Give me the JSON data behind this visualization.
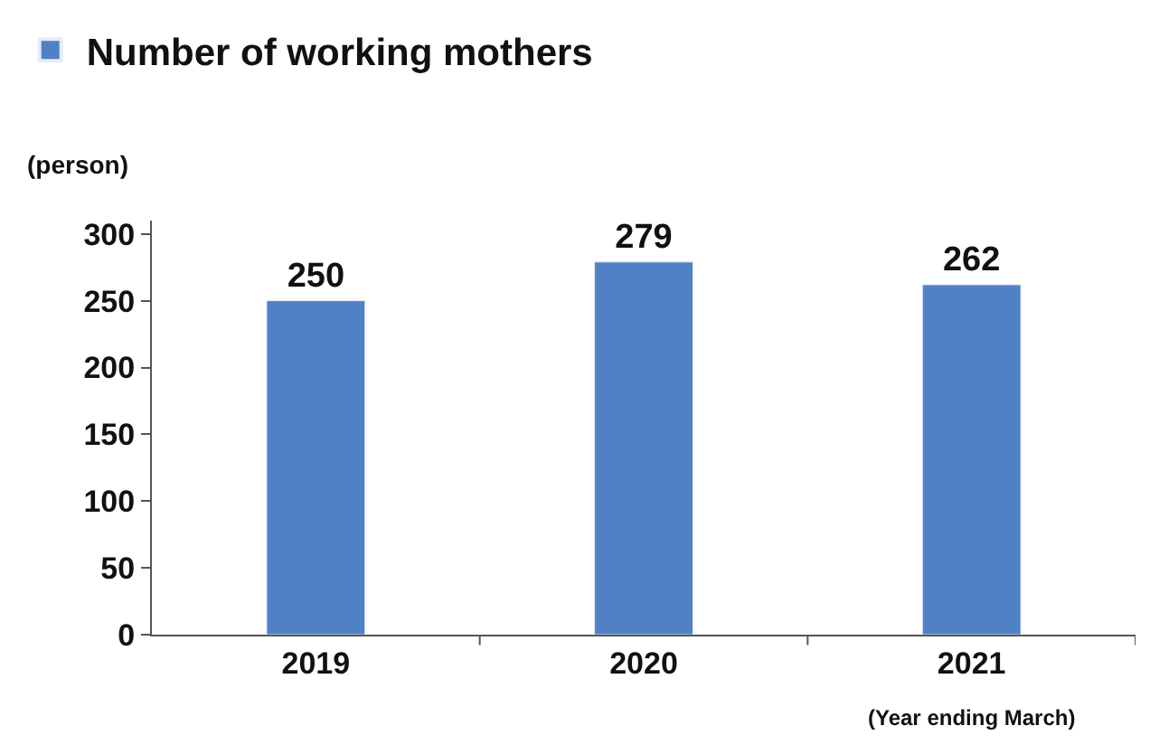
{
  "chart_data": {
    "type": "bar",
    "categories": [
      "2019",
      "2020",
      "2021"
    ],
    "series": [
      {
        "name": "Number of working mothers",
        "color": "#4f81c4",
        "values": [
          250,
          279,
          262
        ]
      }
    ],
    "ylabel": "(person)",
    "annotations": [
      "(Year ending March)"
    ],
    "ylim": [
      0,
      310
    ],
    "yticks": [
      0,
      50,
      100,
      150,
      200,
      250,
      300
    ],
    "data_labels": true,
    "legend": "top left"
  }
}
